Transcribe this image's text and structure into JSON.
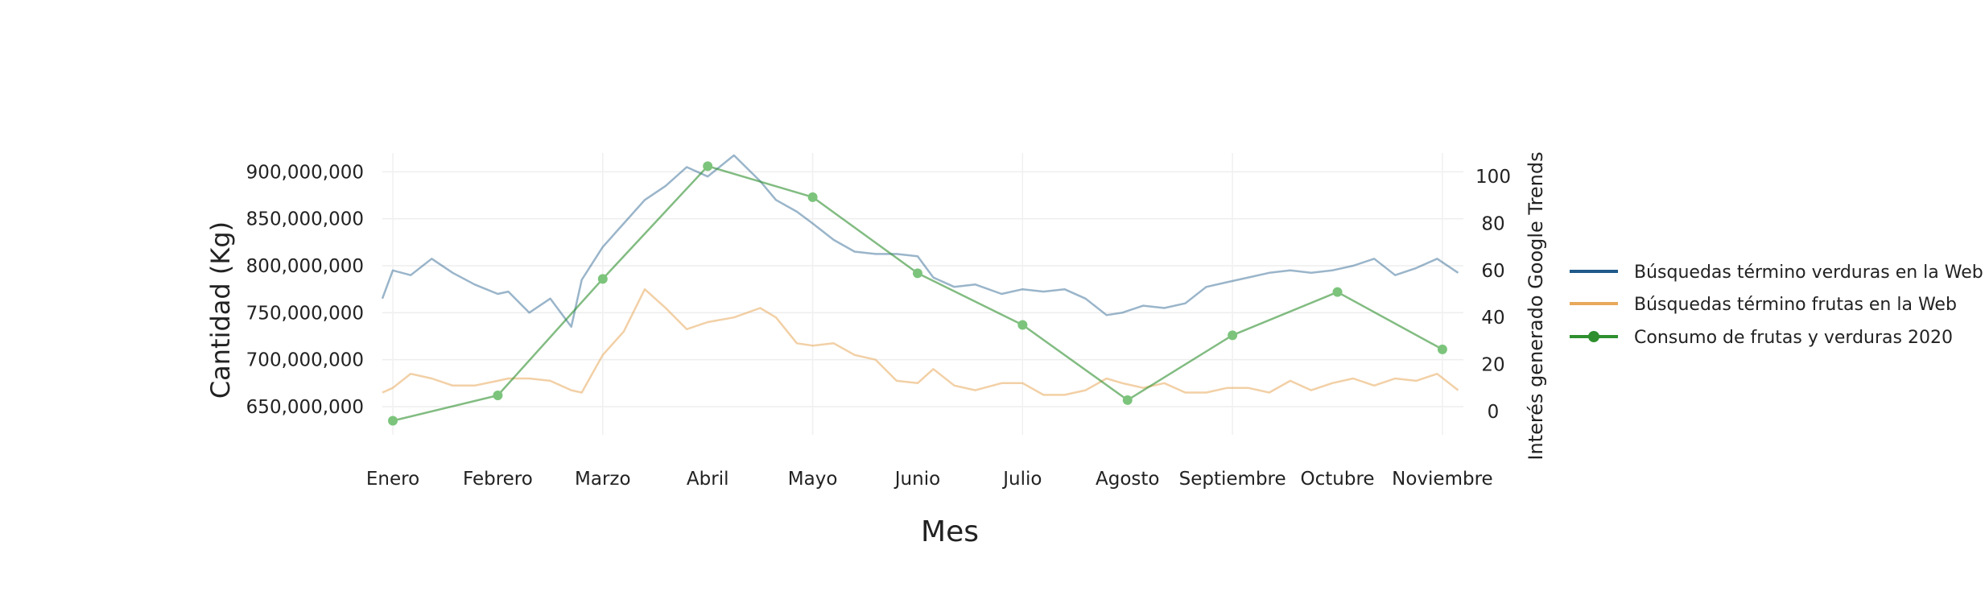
{
  "chart_data": {
    "type": "line",
    "title": "",
    "xlabel": "Mes",
    "ylabel": "Cantidad (Kg)",
    "y2label": "Interés generado Google Trends",
    "categories": [
      "Enero",
      "Febrero",
      "Marzo",
      "Abril",
      "Mayo",
      "Junio",
      "Julio",
      "Agosto",
      "Septiembre",
      "Octubre",
      "Noviembre"
    ],
    "yticks": [
      650000000,
      700000000,
      750000000,
      800000000,
      850000000,
      900000000
    ],
    "ytick_labels": [
      "650,000,000",
      "700,000,000",
      "750,000,000",
      "800,000,000",
      "850,000,000",
      "900,000,000"
    ],
    "ylim": [
      620000000,
      920000000
    ],
    "y2ticks": [
      0,
      20,
      40,
      60,
      80,
      100
    ],
    "y2lim": [
      -10,
      110
    ],
    "xlim": [
      -0.1,
      10.2
    ],
    "grid": true,
    "legend_position": "right",
    "series": [
      {
        "name": "Búsquedas término verduras en la Web",
        "axis": "y2",
        "color": "#1f5a8a",
        "x": [
          -0.1,
          0.0,
          0.17,
          0.37,
          0.57,
          0.78,
          1.0,
          1.1,
          1.3,
          1.5,
          1.7,
          1.8,
          2.0,
          2.2,
          2.4,
          2.6,
          2.8,
          3.0,
          3.25,
          3.5,
          3.65,
          3.85,
          4.0,
          4.2,
          4.4,
          4.6,
          4.8,
          5.0,
          5.15,
          5.35,
          5.55,
          5.8,
          6.0,
          6.2,
          6.4,
          6.6,
          6.8,
          6.95,
          7.15,
          7.35,
          7.55,
          7.75,
          7.95,
          8.15,
          8.35,
          8.55,
          8.75,
          8.95,
          9.15,
          9.35,
          9.55,
          9.75,
          9.95,
          10.15
        ],
        "values": [
          48,
          60,
          58,
          65,
          59,
          54,
          50,
          51,
          42,
          48,
          36,
          56,
          70,
          80,
          90,
          96,
          104,
          100,
          109,
          98,
          90,
          85,
          80,
          73,
          68,
          67,
          67,
          66,
          57,
          53,
          54,
          50,
          52,
          51,
          52,
          48,
          41,
          42,
          45,
          44,
          46,
          53,
          55,
          57,
          59,
          60,
          59,
          60,
          62,
          65,
          58,
          61,
          65,
          59
        ]
      },
      {
        "name": "Búsquedas término frutas en la Web",
        "axis": "y2",
        "color": "#e8a95c",
        "x": [
          -0.1,
          0.0,
          0.17,
          0.37,
          0.57,
          0.78,
          1.0,
          1.1,
          1.3,
          1.5,
          1.7,
          1.8,
          2.0,
          2.2,
          2.4,
          2.6,
          2.8,
          3.0,
          3.25,
          3.5,
          3.65,
          3.85,
          4.0,
          4.2,
          4.4,
          4.6,
          4.8,
          5.0,
          5.15,
          5.35,
          5.55,
          5.8,
          6.0,
          6.2,
          6.4,
          6.6,
          6.8,
          6.95,
          7.15,
          7.35,
          7.55,
          7.75,
          7.95,
          8.15,
          8.35,
          8.55,
          8.75,
          8.95,
          9.15,
          9.35,
          9.55,
          9.75,
          9.95,
          10.15
        ],
        "values": [
          8,
          10,
          16,
          14,
          11,
          11,
          13,
          14,
          14,
          13,
          9,
          8,
          24,
          34,
          52,
          44,
          35,
          38,
          40,
          44,
          40,
          29,
          28,
          29,
          24,
          22,
          13,
          12,
          18,
          11,
          9,
          12,
          12,
          7,
          7,
          9,
          14,
          12,
          10,
          12,
          8,
          8,
          10,
          10,
          8,
          13,
          9,
          12,
          14,
          11,
          14,
          13,
          16,
          9
        ]
      },
      {
        "name": "Consumo de frutas y verduras 2020",
        "axis": "y",
        "color": "#2f8f2f",
        "marker_color": "#7cc47c",
        "x": [
          0,
          1,
          2,
          3,
          4,
          5,
          6,
          7,
          8,
          9,
          10
        ],
        "values": [
          635000000,
          662000000,
          786000000,
          906000000,
          873000000,
          792000000,
          737000000,
          657000000,
          726000000,
          772000000,
          711000000
        ]
      }
    ]
  }
}
